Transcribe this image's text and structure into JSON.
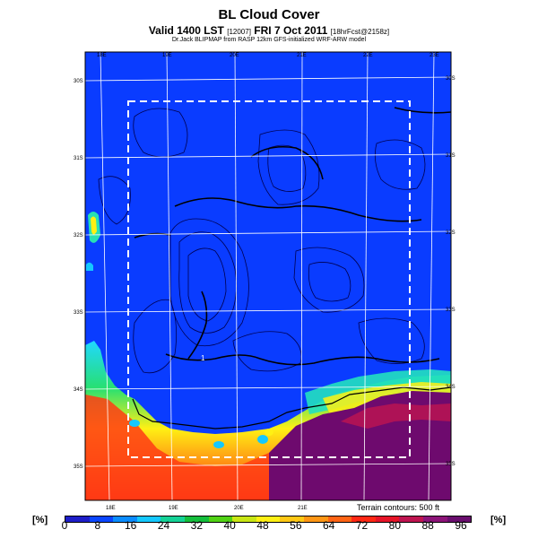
{
  "header": {
    "title": "BL Cloud Cover",
    "valid_time": "Valid 1400 LST",
    "valid_code": "[12007]",
    "date": "FRI 7 Oct 2011",
    "forecast_hours": "[18hrFcst@2158z]",
    "credit": "Dr.Jack BLIPMAP from RASP 12km GFS-initialized WRF-ARW model"
  },
  "map": {
    "longitude_labels_top": [
      "18E",
      "19E",
      "20E",
      "21E",
      "22E",
      "23E"
    ],
    "longitude_labels_bottom": [
      "18E",
      "19E",
      "20E",
      "21E"
    ],
    "latitude_labels_left": [
      "30S",
      "31S",
      "32S",
      "33S",
      "34S",
      "35S"
    ],
    "latitude_labels_right": [
      "30S",
      "31S",
      "32S",
      "33S",
      "34S",
      "35S"
    ],
    "terrain_note": "Terrain contours: 500 ft",
    "marker": "1"
  },
  "colorbar": {
    "unit_label": "[%]",
    "labels": [
      "0",
      "8",
      "16",
      "24",
      "32",
      "40",
      "48",
      "56",
      "64",
      "72",
      "80",
      "88",
      "96"
    ],
    "colors": [
      "#1e1ec8",
      "#0a46ff",
      "#0a8cff",
      "#14c8ff",
      "#14d296",
      "#14be3c",
      "#50d214",
      "#c8e614",
      "#fff014",
      "#ffc814",
      "#ff9614",
      "#ff6414",
      "#ff2814",
      "#e61428",
      "#be1450",
      "#8c1478",
      "#6a0e6e"
    ],
    "colors_note": "Rendering palette"
  }
}
